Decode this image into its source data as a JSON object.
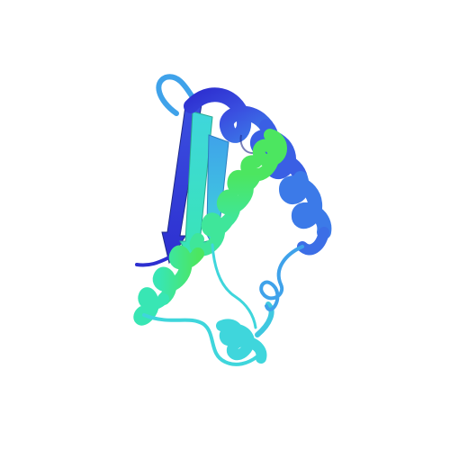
{
  "scene": {
    "subject": "protein-ribbon-cartoon",
    "background": "#ffffff",
    "palette": {
      "dark_blue": "#2d2fd0",
      "royal_blue": "#3a4fe0",
      "medium_blue": "#3c7ae8",
      "sky_blue": "#3fa2ea",
      "cyan": "#3fd6dc",
      "teal": "#38e6b4",
      "green": "#3fe69a",
      "bright_green": "#4ce660",
      "shadow": "#1f2a8a"
    },
    "coloring": "rainbow-by-chain-position"
  }
}
